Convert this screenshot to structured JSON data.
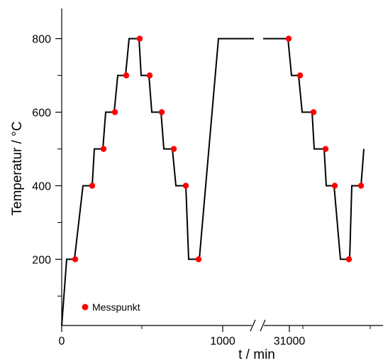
{
  "chart_data": {
    "type": "line",
    "title": "",
    "xlabel": "t / min",
    "ylabel": "Temperatur / °C",
    "x_axis_break": true,
    "x_tick_labels": [
      "0",
      "1000",
      "31000"
    ],
    "ylim": [
      20,
      880
    ],
    "y_ticks": [
      200,
      400,
      600,
      800
    ],
    "y_tick_labels": [
      "200",
      "400",
      "600",
      "800"
    ],
    "grid": false,
    "legend_position": "bottom-left",
    "profile": {
      "name": "",
      "color": "#000000",
      "temperatures": [
        20,
        200,
        200,
        400,
        400,
        500,
        500,
        600,
        600,
        700,
        700,
        800,
        800,
        700,
        700,
        600,
        600,
        500,
        500,
        400,
        400,
        200,
        200,
        800,
        800,
        800,
        800,
        700,
        700,
        600,
        600,
        500,
        500,
        400,
        400,
        200,
        200,
        400,
        400,
        500
      ]
    },
    "measurement_points": {
      "name": "Messpunkt",
      "color": "#ff0000",
      "temperatures": [
        200,
        400,
        500,
        600,
        700,
        800,
        700,
        600,
        500,
        400,
        200,
        800,
        700,
        600,
        500,
        400,
        200,
        400
      ]
    }
  }
}
